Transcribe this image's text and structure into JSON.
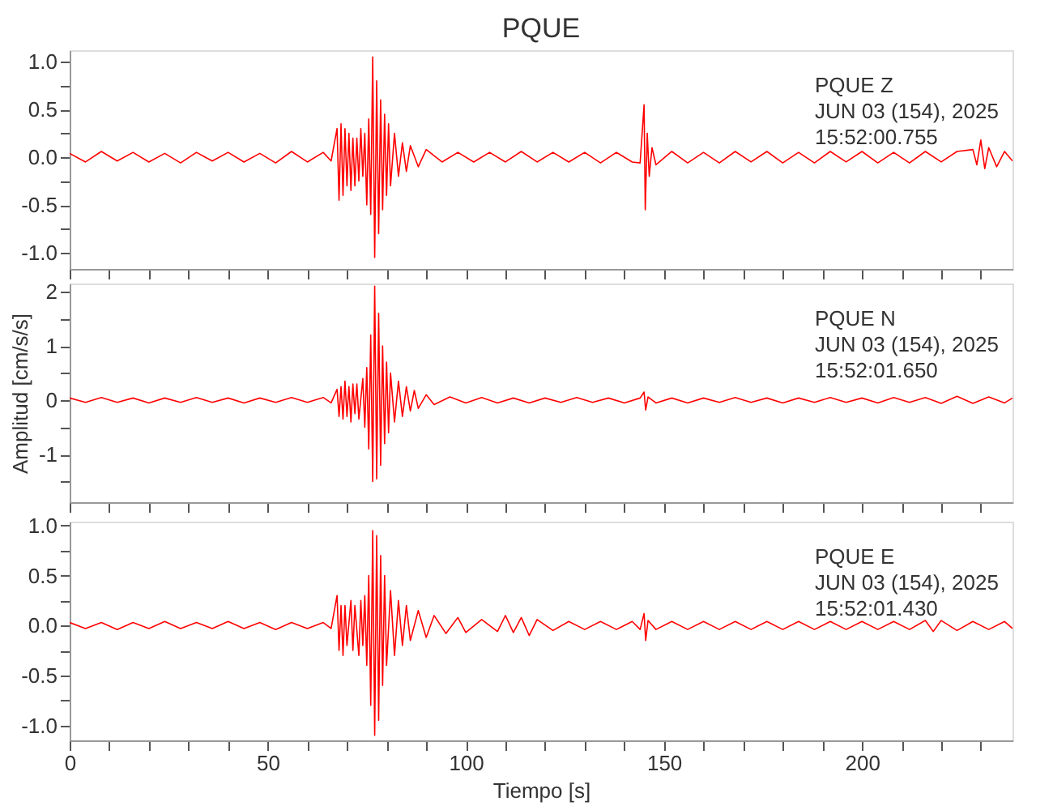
{
  "chart_data": [
    {
      "type": "line",
      "title": "PQUE",
      "annotations": [
        "PQUE  Z",
        "JUN 03 (154), 2025",
        "15:52:00.755"
      ],
      "tick_labels": "y",
      "grid": false,
      "line_style": "solid",
      "xlim": [
        0,
        238
      ],
      "xticks": [
        0,
        {
          "value": 10,
          "label": null
        },
        {
          "value": 20,
          "label": null
        },
        {
          "value": 30,
          "label": null
        },
        {
          "value": 40,
          "label": null
        },
        50,
        {
          "value": 60,
          "label": null
        },
        {
          "value": 70,
          "label": null
        },
        {
          "value": 80,
          "label": null
        },
        {
          "value": 90,
          "label": null
        },
        100,
        {
          "value": 110,
          "label": null
        },
        {
          "value": 120,
          "label": null
        },
        {
          "value": 130,
          "label": null
        },
        {
          "value": 140,
          "label": null
        },
        150,
        {
          "value": 160,
          "label": null
        },
        {
          "value": 170,
          "label": null
        },
        {
          "value": 180,
          "label": null
        },
        {
          "value": 190,
          "label": null
        },
        200,
        {
          "value": 210,
          "label": null
        },
        {
          "value": 220,
          "label": null
        },
        {
          "value": 230,
          "label": null
        }
      ],
      "ylim": [
        -1.17,
        1.12
      ],
      "yticks": [
        {
          "value": -1.0,
          "label": "-1.0"
        },
        {
          "value": -0.75,
          "label": null
        },
        {
          "value": -0.5,
          "label": "-0.5"
        },
        {
          "value": -0.25,
          "label": null
        },
        {
          "value": 0.0,
          "label": "0.0"
        },
        {
          "value": 0.25,
          "label": null
        },
        {
          "value": 0.5,
          "label": "0.5"
        },
        {
          "value": 0.75,
          "label": null
        },
        {
          "value": 1.0,
          "label": "1.0"
        }
      ],
      "x": [
        0,
        4,
        8,
        12,
        16,
        20,
        24,
        28,
        32,
        36,
        40,
        44,
        48,
        52,
        56,
        60,
        64,
        66,
        67.5,
        68,
        68.5,
        69,
        69.5,
        70,
        70.5,
        71,
        71.5,
        72,
        72.5,
        73,
        73.5,
        74,
        74.5,
        75,
        75.5,
        76,
        76.5,
        77,
        77.5,
        78,
        78.5,
        79,
        79.5,
        80,
        80.5,
        81,
        82,
        83,
        84,
        85,
        86,
        88,
        90,
        94,
        98,
        102,
        106,
        110,
        114,
        118,
        122,
        126,
        130,
        134,
        138,
        142,
        144,
        145,
        145.3,
        145.8,
        146.3,
        147,
        148,
        152,
        156,
        160,
        164,
        168,
        172,
        176,
        180,
        184,
        188,
        192,
        196,
        200,
        204,
        208,
        212,
        216,
        220,
        224,
        228,
        229,
        230,
        231,
        232,
        234,
        236,
        238
      ],
      "series": [
        {
          "color": "#ff0000",
          "values": [
            0.04,
            -0.05,
            0.06,
            -0.04,
            0.05,
            -0.05,
            0.04,
            -0.06,
            0.05,
            -0.04,
            0.05,
            -0.05,
            0.04,
            -0.06,
            0.06,
            -0.05,
            0.05,
            -0.04,
            0.3,
            -0.45,
            0.35,
            -0.4,
            0.3,
            -0.3,
            0.25,
            -0.35,
            0.2,
            -0.3,
            0.2,
            -0.25,
            0.3,
            -0.2,
            0.25,
            -0.5,
            0.4,
            -0.6,
            1.05,
            -1.05,
            0.8,
            -0.8,
            0.6,
            -0.55,
            0.45,
            -0.4,
            0.35,
            -0.3,
            0.25,
            -0.2,
            0.15,
            -0.15,
            0.12,
            -0.1,
            0.08,
            -0.05,
            0.05,
            -0.05,
            0.05,
            -0.05,
            0.06,
            -0.05,
            0.05,
            -0.05,
            0.05,
            -0.06,
            0.05,
            -0.05,
            -0.06,
            0.55,
            -0.55,
            0.25,
            -0.2,
            0.1,
            -0.08,
            0.06,
            -0.06,
            0.05,
            -0.06,
            0.06,
            -0.05,
            0.06,
            -0.06,
            0.05,
            -0.06,
            0.06,
            -0.05,
            0.06,
            -0.06,
            0.05,
            -0.06,
            0.06,
            -0.05,
            0.06,
            0.08,
            -0.08,
            0.18,
            -0.12,
            0.1,
            -0.1,
            0.06,
            -0.04
          ]
        }
      ]
    },
    {
      "type": "line",
      "ylabel": "Amplitud [cm/s/s]",
      "annotations": [
        "PQUE  N",
        "JUN 03 (154), 2025",
        "15:52:01.650"
      ],
      "tick_labels": "y",
      "grid": false,
      "line_style": "solid",
      "xlim": [
        0,
        238
      ],
      "xticks": [
        0,
        {
          "value": 10,
          "label": null
        },
        {
          "value": 20,
          "label": null
        },
        {
          "value": 30,
          "label": null
        },
        {
          "value": 40,
          "label": null
        },
        50,
        {
          "value": 60,
          "label": null
        },
        {
          "value": 70,
          "label": null
        },
        {
          "value": 80,
          "label": null
        },
        {
          "value": 90,
          "label": null
        },
        100,
        {
          "value": 110,
          "label": null
        },
        {
          "value": 120,
          "label": null
        },
        {
          "value": 130,
          "label": null
        },
        {
          "value": 140,
          "label": null
        },
        150,
        {
          "value": 160,
          "label": null
        },
        {
          "value": 170,
          "label": null
        },
        {
          "value": 180,
          "label": null
        },
        {
          "value": 190,
          "label": null
        },
        200,
        {
          "value": 210,
          "label": null
        },
        {
          "value": 220,
          "label": null
        },
        {
          "value": 230,
          "label": null
        }
      ],
      "ylim": [
        -1.88,
        2.15
      ],
      "yticks": [
        -1,
        {
          "value": -1.5,
          "label": null
        },
        {
          "value": -0.5,
          "label": null
        },
        0,
        {
          "value": 0.5,
          "label": null
        },
        1,
        {
          "value": 1.5,
          "label": null
        },
        2
      ],
      "x": [
        0,
        4,
        8,
        12,
        16,
        20,
        24,
        28,
        32,
        36,
        40,
        44,
        48,
        52,
        56,
        60,
        64,
        66,
        67.5,
        68,
        68.5,
        69,
        69.5,
        70,
        70.5,
        71,
        71.5,
        72,
        72.5,
        73,
        74,
        74.5,
        75,
        75.5,
        76,
        76.5,
        77,
        77.5,
        78,
        78.5,
        79,
        79.5,
        80,
        80.5,
        81,
        82,
        83,
        84,
        85,
        86,
        87,
        88,
        90,
        92,
        96,
        100,
        104,
        108,
        112,
        116,
        120,
        124,
        128,
        132,
        136,
        140,
        144,
        145,
        145.4,
        146,
        148,
        152,
        156,
        160,
        164,
        168,
        172,
        176,
        180,
        184,
        188,
        192,
        196,
        200,
        204,
        208,
        212,
        216,
        220,
        224,
        228,
        232,
        236,
        238
      ],
      "series": [
        {
          "color": "#ff0000",
          "values": [
            0.04,
            -0.04,
            0.05,
            -0.04,
            0.04,
            -0.05,
            0.04,
            -0.04,
            0.05,
            -0.04,
            0.04,
            -0.05,
            0.04,
            -0.04,
            0.05,
            -0.04,
            0.05,
            -0.05,
            0.2,
            -0.3,
            0.25,
            -0.35,
            0.35,
            -0.3,
            0.25,
            -0.4,
            0.3,
            -0.25,
            0.3,
            -0.35,
            0.4,
            -0.5,
            0.6,
            -0.9,
            1.2,
            -1.5,
            2.1,
            -1.45,
            1.6,
            -1.2,
            1.0,
            -0.8,
            0.7,
            -0.6,
            0.5,
            -0.4,
            0.35,
            -0.3,
            0.25,
            -0.2,
            0.18,
            -0.15,
            0.1,
            -0.08,
            0.06,
            -0.05,
            0.05,
            -0.05,
            0.04,
            -0.05,
            0.04,
            -0.04,
            0.05,
            -0.04,
            0.04,
            -0.05,
            0.04,
            0.15,
            -0.18,
            0.06,
            -0.05,
            0.04,
            -0.05,
            0.04,
            -0.04,
            0.05,
            -0.04,
            0.04,
            -0.05,
            0.04,
            -0.04,
            0.05,
            -0.04,
            0.04,
            -0.05,
            0.05,
            -0.04,
            0.05,
            -0.06,
            0.07,
            -0.06,
            0.06,
            -0.05,
            0.04
          ]
        }
      ]
    },
    {
      "type": "line",
      "xlabel": "Tiempo [s]",
      "annotations": [
        "PQUE  E",
        "JUN 03 (154), 2025",
        "15:52:01.430"
      ],
      "grid": false,
      "line_style": "solid",
      "xlim": [
        0,
        238
      ],
      "xticks": [
        0,
        {
          "value": 10,
          "label": null
        },
        {
          "value": 20,
          "label": null
        },
        {
          "value": 30,
          "label": null
        },
        {
          "value": 40,
          "label": null
        },
        50,
        {
          "value": 60,
          "label": null
        },
        {
          "value": 70,
          "label": null
        },
        {
          "value": 80,
          "label": null
        },
        {
          "value": 90,
          "label": null
        },
        100,
        {
          "value": 110,
          "label": null
        },
        {
          "value": 120,
          "label": null
        },
        {
          "value": 130,
          "label": null
        },
        {
          "value": 140,
          "label": null
        },
        150,
        {
          "value": 160,
          "label": null
        },
        {
          "value": 170,
          "label": null
        },
        {
          "value": 180,
          "label": null
        },
        {
          "value": 190,
          "label": null
        },
        200,
        {
          "value": 210,
          "label": null
        },
        {
          "value": 220,
          "label": null
        },
        {
          "value": 230,
          "label": null
        }
      ],
      "ylim": [
        -1.15,
        1.04
      ],
      "yticks": [
        {
          "value": -1.0,
          "label": "-1.0"
        },
        {
          "value": -0.75,
          "label": null
        },
        {
          "value": -0.5,
          "label": "-0.5"
        },
        {
          "value": -0.25,
          "label": null
        },
        {
          "value": 0.0,
          "label": "0.0"
        },
        {
          "value": 0.25,
          "label": null
        },
        {
          "value": 0.5,
          "label": "0.5"
        },
        {
          "value": 0.75,
          "label": null
        },
        {
          "value": 1.0,
          "label": "1.0"
        }
      ],
      "x": [
        0,
        4,
        8,
        12,
        16,
        20,
        24,
        28,
        32,
        36,
        40,
        44,
        48,
        52,
        56,
        60,
        64,
        66,
        67.5,
        68,
        68.5,
        69,
        69.5,
        70,
        71,
        71.5,
        72,
        73,
        73.5,
        74,
        74.5,
        75,
        75.5,
        76,
        76.5,
        77,
        77.5,
        78,
        78.5,
        79,
        79.5,
        80,
        81,
        82,
        83,
        84,
        85,
        86,
        88,
        90,
        92,
        95,
        98,
        100,
        104,
        108,
        110,
        112,
        114,
        116,
        118,
        122,
        126,
        130,
        134,
        138,
        142,
        144,
        145,
        145.4,
        146,
        148,
        152,
        156,
        160,
        164,
        168,
        172,
        176,
        180,
        184,
        188,
        192,
        196,
        200,
        204,
        208,
        212,
        216,
        218,
        220,
        224,
        228,
        232,
        236,
        238
      ],
      "series": [
        {
          "color": "#ff0000",
          "values": [
            0.03,
            -0.03,
            0.03,
            -0.04,
            0.03,
            -0.03,
            0.04,
            -0.03,
            0.03,
            -0.03,
            0.04,
            -0.03,
            0.03,
            -0.04,
            0.03,
            -0.03,
            0.03,
            -0.03,
            0.3,
            -0.25,
            0.2,
            -0.3,
            0.2,
            -0.2,
            0.25,
            -0.25,
            0.2,
            -0.3,
            0.25,
            -0.2,
            0.3,
            -0.4,
            0.5,
            -0.8,
            0.95,
            -1.1,
            0.9,
            -0.95,
            0.7,
            -0.6,
            0.5,
            -0.4,
            0.35,
            -0.3,
            0.25,
            -0.2,
            0.2,
            -0.15,
            0.15,
            -0.12,
            0.1,
            -0.08,
            0.08,
            -0.07,
            0.06,
            -0.06,
            0.1,
            -0.07,
            0.08,
            -0.1,
            0.06,
            -0.05,
            0.04,
            -0.04,
            0.04,
            -0.04,
            0.04,
            -0.04,
            0.12,
            -0.15,
            0.05,
            -0.04,
            0.04,
            -0.04,
            0.04,
            -0.04,
            0.04,
            -0.04,
            0.04,
            -0.04,
            0.04,
            -0.04,
            0.04,
            -0.04,
            0.04,
            -0.04,
            0.04,
            -0.04,
            0.05,
            -0.06,
            0.05,
            -0.05,
            0.04,
            -0.04,
            0.04,
            -0.03
          ]
        }
      ]
    }
  ]
}
